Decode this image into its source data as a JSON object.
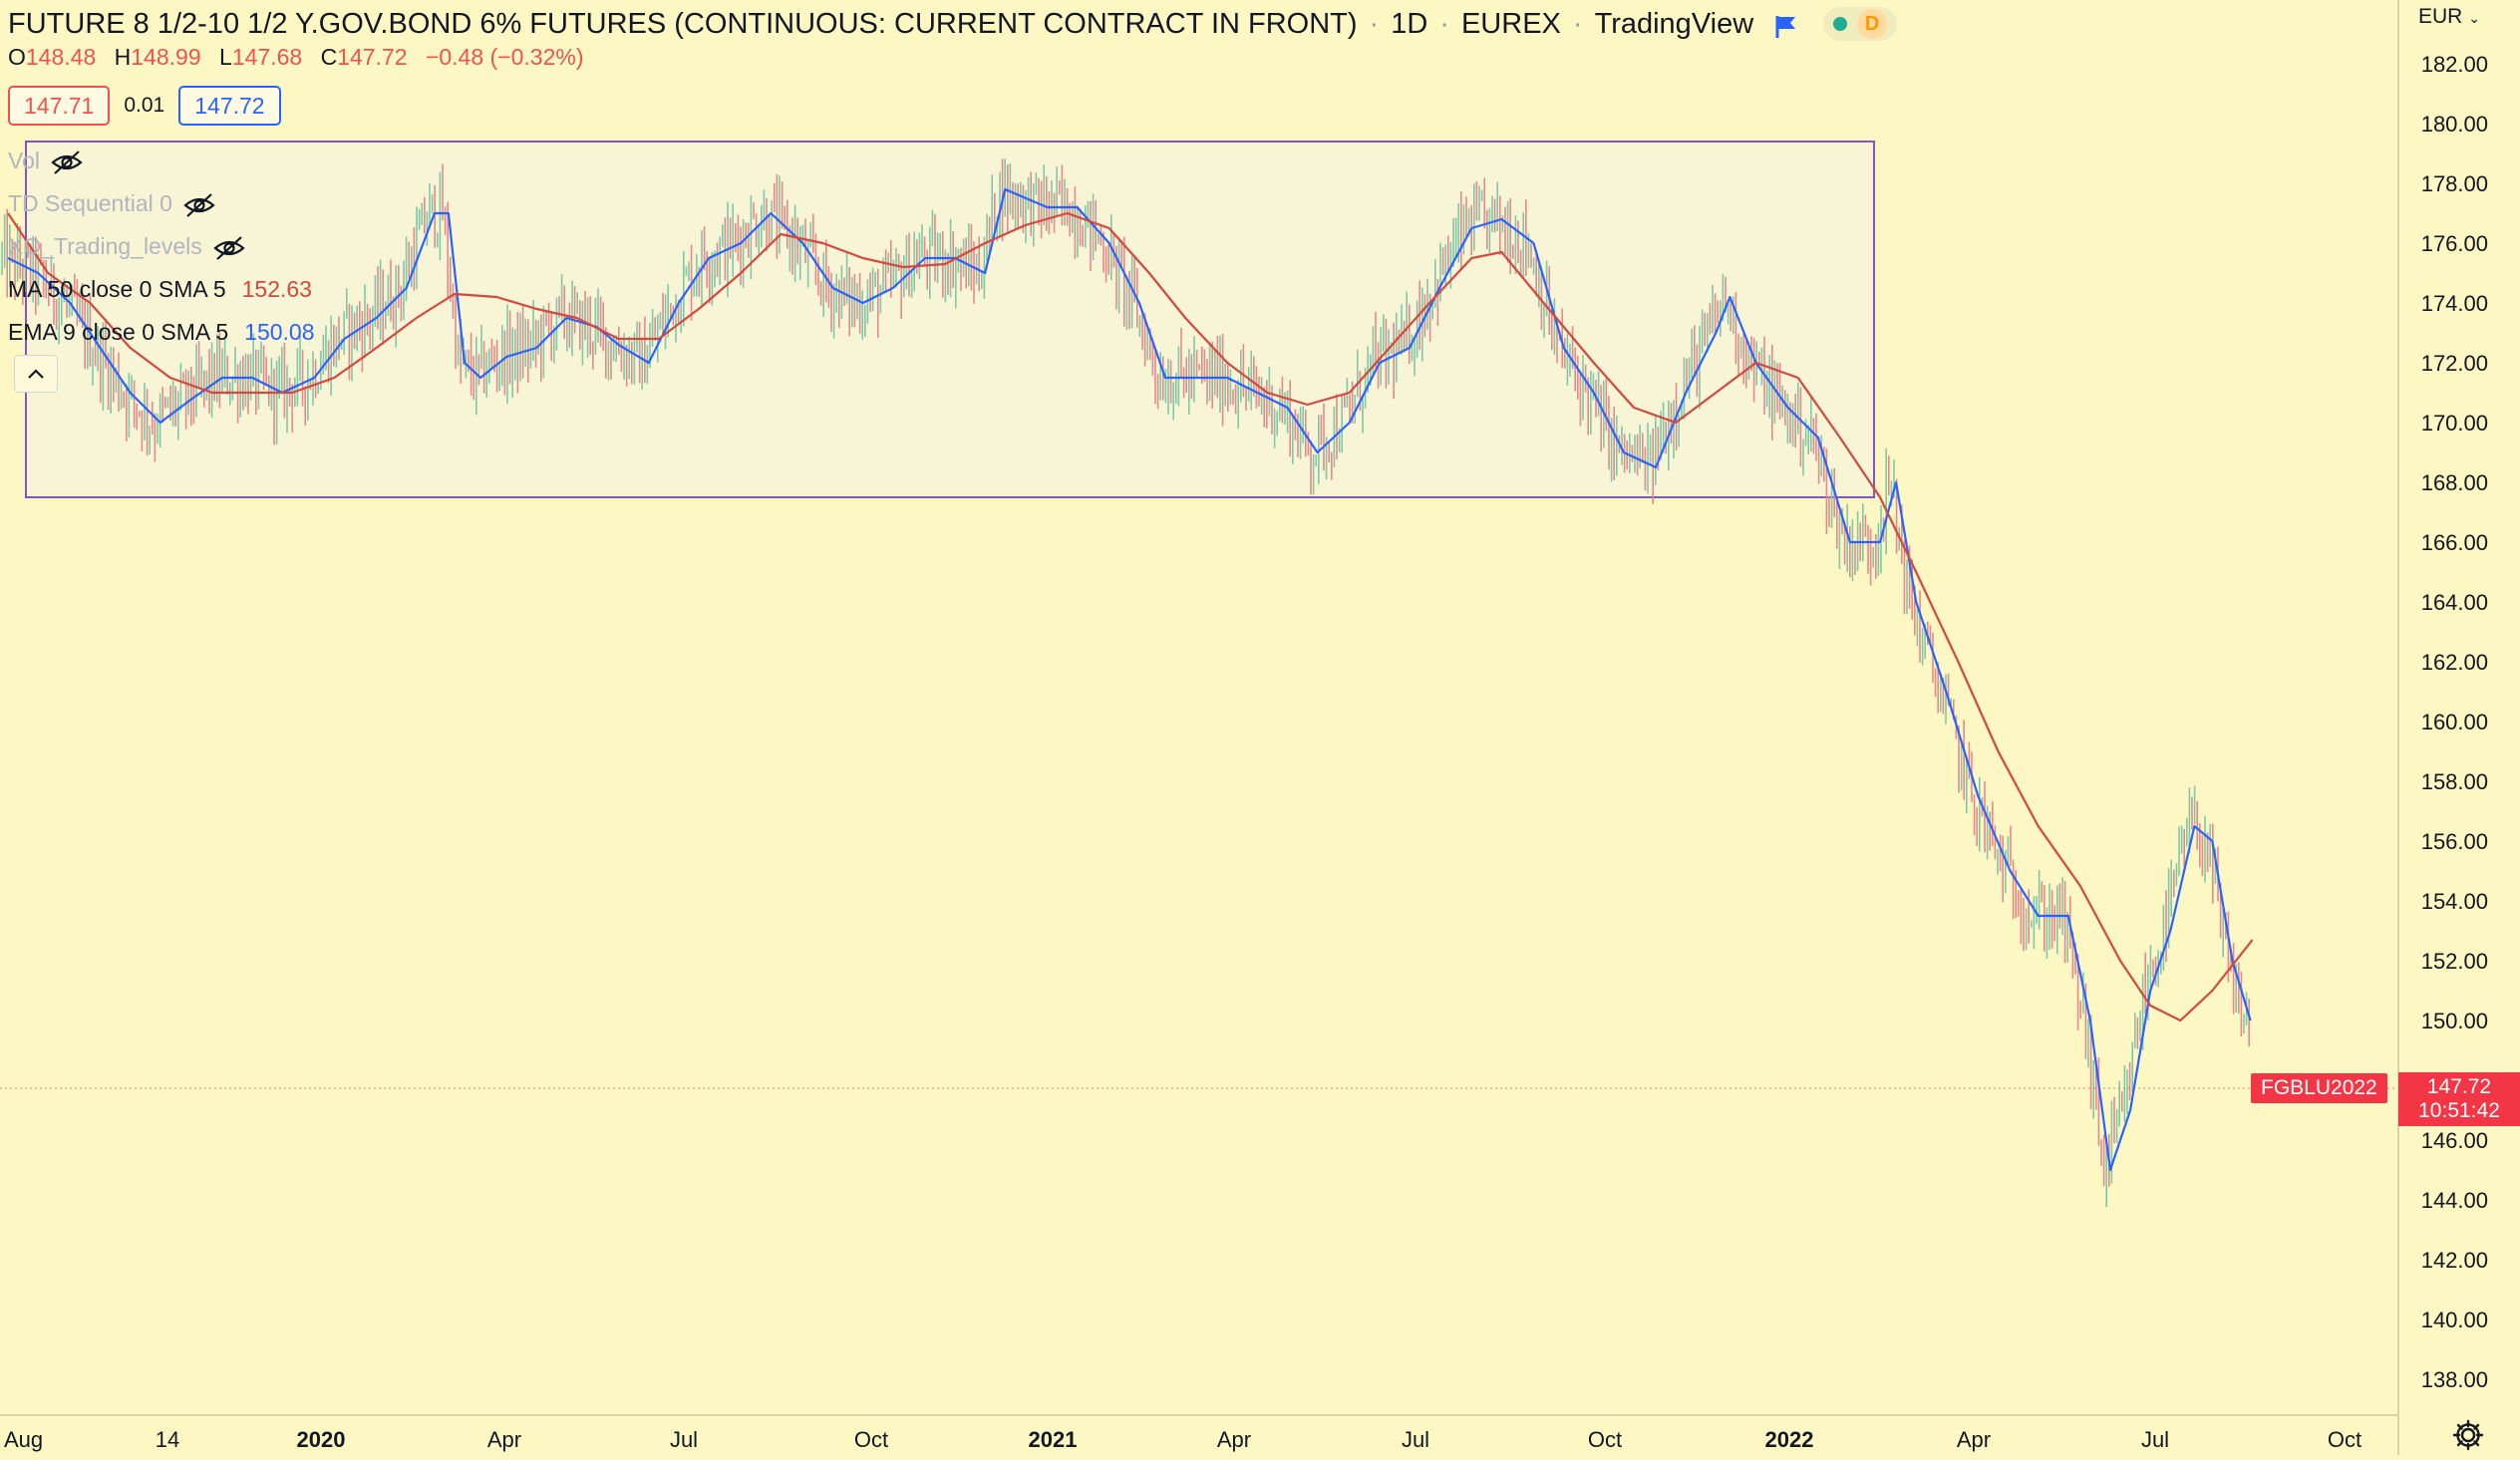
{
  "header": {
    "symbol_title": "FUTURE 8 1/2-10 1/2 Y.GOV.BOND 6% FUTURES (CONTINUOUS: CURRENT CONTRACT IN FRONT)",
    "interval": "1D",
    "exchange": "EUREX",
    "provider": "TradingView",
    "flag_icon": "blue-flag-icon",
    "status_badge": "D",
    "status_color": "#22ab94"
  },
  "ohlc": {
    "open_label": "O",
    "open": "148.48",
    "high_label": "H",
    "high": "148.99",
    "low_label": "L",
    "low": "147.68",
    "close_label": "C",
    "close": "147.72",
    "change": "−0.48 (−0.32%)"
  },
  "order_panel": {
    "sell_price": "147.71",
    "spread": "0.01",
    "buy_price": "147.72"
  },
  "indicators": [
    {
      "name": "Vol",
      "hidden": true,
      "value": ""
    },
    {
      "name": "TD Sequential 0",
      "hidden": true,
      "value": ""
    },
    {
      "name": "XO_Trading_levels",
      "hidden": true,
      "value": ""
    },
    {
      "name": "MA 50 close 0 SMA 5",
      "hidden": false,
      "value": "152.63",
      "color": "#d3483f"
    },
    {
      "name": "EMA 9 close 0 SMA 5",
      "hidden": false,
      "value": "150.08",
      "color": "#2962ff"
    }
  ],
  "price_axis": {
    "currency": "EUR",
    "labels": [
      "182.00",
      "180.00",
      "178.00",
      "176.00",
      "174.00",
      "172.00",
      "170.00",
      "168.00",
      "166.00",
      "164.00",
      "162.00",
      "160.00",
      "158.00",
      "156.00",
      "154.00",
      "152.00",
      "150.00",
      "146.00",
      "144.00",
      "142.00",
      "140.00",
      "138.00"
    ]
  },
  "time_axis": {
    "labels": [
      "Aug",
      "14",
      "2020",
      "Apr",
      "Jul",
      "Oct",
      "2021",
      "Apr",
      "Jul",
      "Oct",
      "2022",
      "Apr",
      "Jul",
      "Oct"
    ],
    "bold": [
      "2020",
      "2021",
      "2022"
    ]
  },
  "last_price": {
    "symbol": "FGBLU2022",
    "price": "147.72",
    "countdown": "10:51:42"
  },
  "colors": {
    "background": "#fdf7c4",
    "ema": "#2962ff",
    "ma": "#d3483f",
    "up_bar": "#7fc8a9",
    "down_bar": "#e58a8a",
    "range_box_stroke": "#7e57c2",
    "range_box_fill": "#f6f5d8",
    "last_price": "#f23645"
  },
  "chart_data": {
    "type": "line",
    "title": "FUTURE 8 1/2-10 1/2 Y.GOV.BOND 6% FUTURES (CONTINUOUS: CURRENT CONTRACT IN FRONT)",
    "xlabel": "",
    "ylabel": "",
    "ylim": [
      137,
      183.5
    ],
    "x_range": [
      "2019-08",
      "2022-10"
    ],
    "range_box": {
      "x": [
        "2019-08",
        "2022-02"
      ],
      "y": [
        167.5,
        179.4
      ]
    },
    "series": [
      {
        "name": "EMA 9 close 0 SMA 5",
        "values": [
          [
            "2019-08-05",
            175.5
          ],
          [
            "2019-08-20",
            175.0
          ],
          [
            "2019-09-05",
            174.0
          ],
          [
            "2019-09-20",
            172.5
          ],
          [
            "2019-10-05",
            171.0
          ],
          [
            "2019-10-20",
            170.0
          ],
          [
            "2019-11-05",
            170.8
          ],
          [
            "2019-11-20",
            171.5
          ],
          [
            "2019-12-05",
            171.5
          ],
          [
            "2019-12-20",
            171.0
          ],
          [
            "2020-01-05",
            171.5
          ],
          [
            "2020-01-20",
            172.8
          ],
          [
            "2020-02-05",
            173.5
          ],
          [
            "2020-02-20",
            174.5
          ],
          [
            "2020-03-05",
            177.0
          ],
          [
            "2020-03-12",
            177.0
          ],
          [
            "2020-03-20",
            172.0
          ],
          [
            "2020-03-28",
            171.5
          ],
          [
            "2020-04-10",
            172.2
          ],
          [
            "2020-04-25",
            172.5
          ],
          [
            "2020-05-10",
            173.5
          ],
          [
            "2020-05-25",
            173.2
          ],
          [
            "2020-06-05",
            172.6
          ],
          [
            "2020-06-20",
            172.0
          ],
          [
            "2020-07-05",
            174.0
          ],
          [
            "2020-07-20",
            175.5
          ],
          [
            "2020-08-05",
            176.0
          ],
          [
            "2020-08-20",
            177.0
          ],
          [
            "2020-09-05",
            176.0
          ],
          [
            "2020-09-20",
            174.5
          ],
          [
            "2020-10-05",
            174.0
          ],
          [
            "2020-10-20",
            174.5
          ],
          [
            "2020-11-05",
            175.5
          ],
          [
            "2020-11-20",
            175.5
          ],
          [
            "2020-12-05",
            175.0
          ],
          [
            "2020-12-15",
            177.8
          ],
          [
            "2021-01-05",
            177.2
          ],
          [
            "2021-01-20",
            177.2
          ],
          [
            "2021-02-05",
            176.0
          ],
          [
            "2021-02-20",
            174.0
          ],
          [
            "2021-03-05",
            171.5
          ],
          [
            "2021-03-20",
            171.5
          ],
          [
            "2021-04-05",
            171.5
          ],
          [
            "2021-04-20",
            171.0
          ],
          [
            "2021-05-05",
            170.5
          ],
          [
            "2021-05-20",
            169.0
          ],
          [
            "2021-06-05",
            170.0
          ],
          [
            "2021-06-20",
            172.0
          ],
          [
            "2021-07-05",
            172.5
          ],
          [
            "2021-07-20",
            174.5
          ],
          [
            "2021-08-05",
            176.5
          ],
          [
            "2021-08-20",
            176.8
          ],
          [
            "2021-09-05",
            176.0
          ],
          [
            "2021-09-20",
            172.5
          ],
          [
            "2021-10-05",
            171.0
          ],
          [
            "2021-10-20",
            169.0
          ],
          [
            "2021-11-05",
            168.5
          ],
          [
            "2021-11-20",
            171.0
          ],
          [
            "2021-12-05",
            173.0
          ],
          [
            "2021-12-12",
            174.2
          ],
          [
            "2021-12-25",
            172.0
          ],
          [
            "2022-01-10",
            170.5
          ],
          [
            "2022-01-25",
            169.5
          ],
          [
            "2022-02-10",
            166.0
          ],
          [
            "2022-02-25",
            166.0
          ],
          [
            "2022-03-05",
            168.0
          ],
          [
            "2022-03-15",
            164.0
          ],
          [
            "2022-03-30",
            161.0
          ],
          [
            "2022-04-15",
            157.5
          ],
          [
            "2022-05-01",
            155.0
          ],
          [
            "2022-05-15",
            153.5
          ],
          [
            "2022-05-30",
            153.5
          ],
          [
            "2022-06-10",
            150.0
          ],
          [
            "2022-06-20",
            145.0
          ],
          [
            "2022-06-30",
            147.0
          ],
          [
            "2022-07-10",
            151.0
          ],
          [
            "2022-07-20",
            153.0
          ],
          [
            "2022-08-01",
            156.5
          ],
          [
            "2022-08-10",
            156.0
          ],
          [
            "2022-08-20",
            152.0
          ],
          [
            "2022-08-29",
            150.0
          ]
        ]
      },
      {
        "name": "MA 50 close 0 SMA 5",
        "values": [
          [
            "2019-08-05",
            177.0
          ],
          [
            "2019-08-25",
            175.0
          ],
          [
            "2019-09-15",
            174.0
          ],
          [
            "2019-10-05",
            172.5
          ],
          [
            "2019-10-25",
            171.5
          ],
          [
            "2019-11-15",
            171.0
          ],
          [
            "2019-12-05",
            171.0
          ],
          [
            "2019-12-25",
            171.0
          ],
          [
            "2020-01-15",
            171.5
          ],
          [
            "2020-02-05",
            172.5
          ],
          [
            "2020-02-25",
            173.5
          ],
          [
            "2020-03-15",
            174.3
          ],
          [
            "2020-04-05",
            174.2
          ],
          [
            "2020-04-25",
            173.8
          ],
          [
            "2020-05-15",
            173.5
          ],
          [
            "2020-06-05",
            172.8
          ],
          [
            "2020-06-25",
            172.8
          ],
          [
            "2020-07-15",
            173.8
          ],
          [
            "2020-08-05",
            175.0
          ],
          [
            "2020-08-25",
            176.3
          ],
          [
            "2020-09-15",
            176.0
          ],
          [
            "2020-10-05",
            175.5
          ],
          [
            "2020-10-25",
            175.2
          ],
          [
            "2020-11-15",
            175.3
          ],
          [
            "2020-12-05",
            176.0
          ],
          [
            "2020-12-25",
            176.6
          ],
          [
            "2021-01-15",
            177.0
          ],
          [
            "2021-02-05",
            176.5
          ],
          [
            "2021-02-25",
            175.0
          ],
          [
            "2021-03-15",
            173.5
          ],
          [
            "2021-04-05",
            172.0
          ],
          [
            "2021-04-25",
            171.0
          ],
          [
            "2021-05-15",
            170.6
          ],
          [
            "2021-06-05",
            171.0
          ],
          [
            "2021-06-25",
            172.5
          ],
          [
            "2021-07-15",
            174.0
          ],
          [
            "2021-08-05",
            175.5
          ],
          [
            "2021-08-20",
            175.7
          ],
          [
            "2021-09-10",
            174.0
          ],
          [
            "2021-10-05",
            172.0
          ],
          [
            "2021-10-25",
            170.5
          ],
          [
            "2021-11-15",
            170.0
          ],
          [
            "2021-12-05",
            171.0
          ],
          [
            "2021-12-25",
            172.0
          ],
          [
            "2022-01-15",
            171.5
          ],
          [
            "2022-02-05",
            169.5
          ],
          [
            "2022-02-25",
            167.5
          ],
          [
            "2022-03-15",
            165.0
          ],
          [
            "2022-04-05",
            162.0
          ],
          [
            "2022-04-25",
            159.0
          ],
          [
            "2022-05-15",
            156.5
          ],
          [
            "2022-06-05",
            154.5
          ],
          [
            "2022-06-25",
            152.0
          ],
          [
            "2022-07-10",
            150.5
          ],
          [
            "2022-07-25",
            150.0
          ],
          [
            "2022-08-10",
            151.0
          ],
          [
            "2022-08-30",
            152.7
          ]
        ]
      }
    ]
  }
}
